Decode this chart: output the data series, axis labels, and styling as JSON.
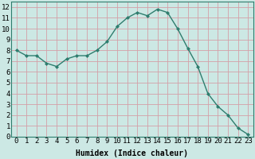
{
  "x": [
    0,
    1,
    2,
    3,
    4,
    5,
    6,
    7,
    8,
    9,
    10,
    11,
    12,
    13,
    14,
    15,
    16,
    17,
    18,
    19,
    20,
    21,
    22,
    23
  ],
  "y": [
    8.0,
    7.5,
    7.5,
    6.8,
    6.5,
    7.2,
    7.5,
    7.5,
    8.0,
    8.8,
    10.2,
    11.0,
    11.5,
    11.2,
    11.8,
    11.5,
    10.0,
    8.2,
    6.5,
    4.0,
    2.8,
    2.0,
    0.8,
    0.2
  ],
  "line_color": "#2e7d6e",
  "marker": "D",
  "marker_size": 2.0,
  "linewidth": 1.0,
  "bg_color": "#cce8e4",
  "grid_color": "#d4a0a8",
  "xlabel": "Humidex (Indice chaleur)",
  "xlim": [
    -0.5,
    23.5
  ],
  "ylim": [
    0,
    12.5
  ],
  "yticks": [
    0,
    1,
    2,
    3,
    4,
    5,
    6,
    7,
    8,
    9,
    10,
    11,
    12
  ],
  "xticks": [
    0,
    1,
    2,
    3,
    4,
    5,
    6,
    7,
    8,
    9,
    10,
    11,
    12,
    13,
    14,
    15,
    16,
    17,
    18,
    19,
    20,
    21,
    22,
    23
  ],
  "xlabel_fontsize": 7,
  "tick_fontsize": 6.5
}
